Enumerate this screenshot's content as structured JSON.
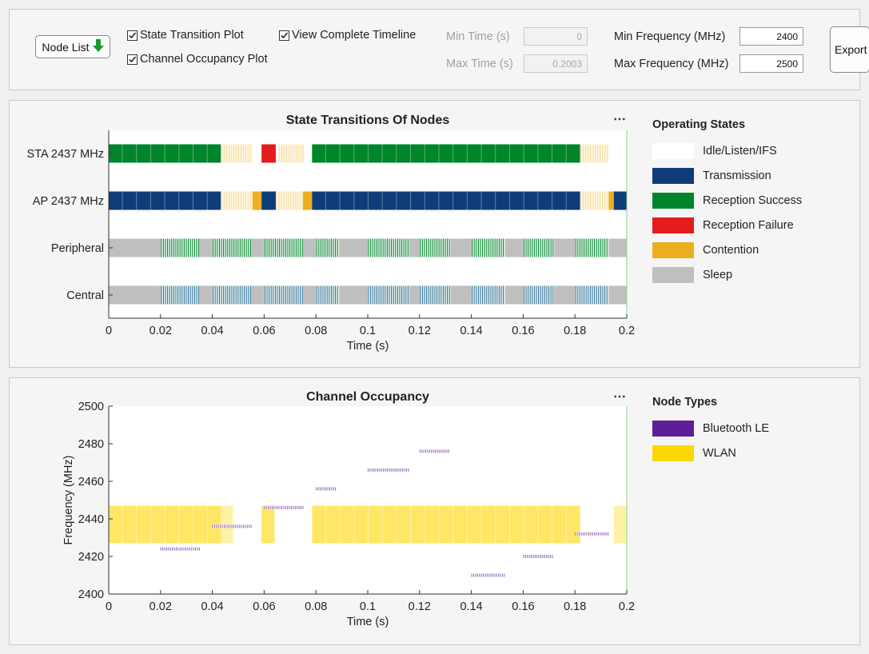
{
  "controls": {
    "node_list_label": "Node List",
    "state_transition_label": "State Transition Plot",
    "channel_occupancy_label": "Channel Occupancy Plot",
    "complete_timeline_label": "View Complete Timeline",
    "min_time_label": "Min Time (s)",
    "max_time_label": "Max Time (s)",
    "min_time_value": "0",
    "max_time_value": "0.2003",
    "min_freq_label": "Min Frequency (MHz)",
    "max_freq_label": "Max Frequency (MHz)",
    "min_freq_value": "2400",
    "max_freq_value": "2500",
    "export_label": "Export",
    "checkbox_states": {
      "state_transition": true,
      "channel_occupancy": true,
      "complete_timeline": true
    },
    "time_fields_enabled": false
  },
  "colors": {
    "idle": "#ffffff",
    "transmission": "#0e3d7a",
    "reception_success": "#00852b",
    "reception_failure": "#e31c1c",
    "contention": "#edaf20",
    "sleep": "#bfbfbf",
    "ble": "#5e1f96",
    "wlan": "#ffd700",
    "ble_central_stripe": "#2e6f99",
    "idle_stripe": "#f3dca0"
  },
  "state_legend": {
    "title": "Operating States",
    "items": [
      {
        "label": "Idle/Listen/IFS",
        "color": "#ffffff"
      },
      {
        "label": "Transmission",
        "color": "#0e3d7a"
      },
      {
        "label": "Reception Success",
        "color": "#00852b"
      },
      {
        "label": "Reception Failure",
        "color": "#e31c1c"
      },
      {
        "label": "Contention",
        "color": "#edaf20"
      },
      {
        "label": "Sleep",
        "color": "#bfbfbf"
      }
    ]
  },
  "node_legend": {
    "title": "Node Types",
    "items": [
      {
        "label": "Bluetooth LE",
        "color": "#5e1f96"
      },
      {
        "label": "WLAN",
        "color": "#ffd700"
      }
    ]
  },
  "chart_data": [
    {
      "type": "timeline",
      "title": "State Transitions Of Nodes",
      "xlabel": "Time (s)",
      "xlim": [
        0,
        0.2
      ],
      "xticks": [
        "0",
        "0.02",
        "0.04",
        "0.06",
        "0.08",
        "0.1",
        "0.12",
        "0.14",
        "0.16",
        "0.18",
        "0.2"
      ],
      "rows": [
        {
          "name": "STA 2437 MHz",
          "segments": [
            {
              "start": 0.0,
              "end": 0.0433,
              "state": "reception_success"
            },
            {
              "start": 0.0433,
              "end": 0.0555,
              "state": "idle_busy"
            },
            {
              "start": 0.059,
              "end": 0.0645,
              "state": "reception_failure"
            },
            {
              "start": 0.0655,
              "end": 0.0755,
              "state": "idle_busy"
            },
            {
              "start": 0.0785,
              "end": 0.182,
              "state": "reception_success"
            },
            {
              "start": 0.182,
              "end": 0.193,
              "state": "idle_busy"
            }
          ]
        },
        {
          "name": "AP 2437 MHz",
          "segments": [
            {
              "start": 0.0,
              "end": 0.0433,
              "state": "transmission"
            },
            {
              "start": 0.0433,
              "end": 0.0555,
              "state": "idle_busy"
            },
            {
              "start": 0.0555,
              "end": 0.059,
              "state": "contention"
            },
            {
              "start": 0.059,
              "end": 0.0645,
              "state": "transmission"
            },
            {
              "start": 0.0645,
              "end": 0.075,
              "state": "idle_busy"
            },
            {
              "start": 0.075,
              "end": 0.0785,
              "state": "contention"
            },
            {
              "start": 0.0785,
              "end": 0.182,
              "state": "transmission"
            },
            {
              "start": 0.182,
              "end": 0.193,
              "state": "idle_busy"
            },
            {
              "start": 0.193,
              "end": 0.195,
              "state": "contention"
            },
            {
              "start": 0.195,
              "end": 0.2,
              "state": "transmission"
            }
          ]
        },
        {
          "name": "Peripheral",
          "base": "sleep",
          "bursts": [
            [
              0.02,
              0.035
            ],
            [
              0.04,
              0.055
            ],
            [
              0.06,
              0.075
            ],
            [
              0.08,
              0.089
            ],
            [
              0.1,
              0.116
            ],
            [
              0.12,
              0.132
            ],
            [
              0.14,
              0.153
            ],
            [
              0.16,
              0.172
            ],
            [
              0.18,
              0.193
            ]
          ],
          "burst_state": "reception_success"
        },
        {
          "name": "Central",
          "base": "sleep",
          "bursts": [
            [
              0.02,
              0.035
            ],
            [
              0.04,
              0.055
            ],
            [
              0.06,
              0.075
            ],
            [
              0.08,
              0.089
            ],
            [
              0.1,
              0.116
            ],
            [
              0.12,
              0.132
            ],
            [
              0.14,
              0.153
            ],
            [
              0.16,
              0.172
            ],
            [
              0.18,
              0.193
            ]
          ],
          "burst_state": "ble_central_stripe"
        }
      ]
    },
    {
      "type": "timeline",
      "title": "Channel Occupancy",
      "xlabel": "Time (s)",
      "ylabel": "Frequency (MHz)",
      "xlim": [
        0,
        0.2
      ],
      "ylim": [
        2400,
        2500
      ],
      "xticks": [
        "0",
        "0.02",
        "0.04",
        "0.06",
        "0.08",
        "0.1",
        "0.12",
        "0.14",
        "0.16",
        "0.18",
        "0.2"
      ],
      "yticks": [
        "2400",
        "2420",
        "2440",
        "2460",
        "2480",
        "2500"
      ],
      "wlan": [
        {
          "start": 0.0,
          "end": 0.0433,
          "f_low": 2427,
          "f_high": 2447
        },
        {
          "start": 0.0433,
          "end": 0.048,
          "f_low": 2427,
          "f_high": 2447,
          "faint": true
        },
        {
          "start": 0.059,
          "end": 0.064,
          "f_low": 2427,
          "f_high": 2447
        },
        {
          "start": 0.0785,
          "end": 0.182,
          "f_low": 2427,
          "f_high": 2447
        },
        {
          "start": 0.195,
          "end": 0.2,
          "f_low": 2427,
          "f_high": 2447,
          "faint": true
        }
      ],
      "ble": [
        {
          "start": 0.02,
          "end": 0.035,
          "freq": 2424
        },
        {
          "start": 0.04,
          "end": 0.055,
          "freq": 2436
        },
        {
          "start": 0.06,
          "end": 0.075,
          "freq": 2446
        },
        {
          "start": 0.08,
          "end": 0.088,
          "freq": 2456
        },
        {
          "start": 0.1,
          "end": 0.116,
          "freq": 2466
        },
        {
          "start": 0.12,
          "end": 0.132,
          "freq": 2476
        },
        {
          "start": 0.14,
          "end": 0.153,
          "freq": 2410
        },
        {
          "start": 0.16,
          "end": 0.172,
          "freq": 2420
        },
        {
          "start": 0.18,
          "end": 0.193,
          "freq": 2432
        }
      ]
    }
  ]
}
